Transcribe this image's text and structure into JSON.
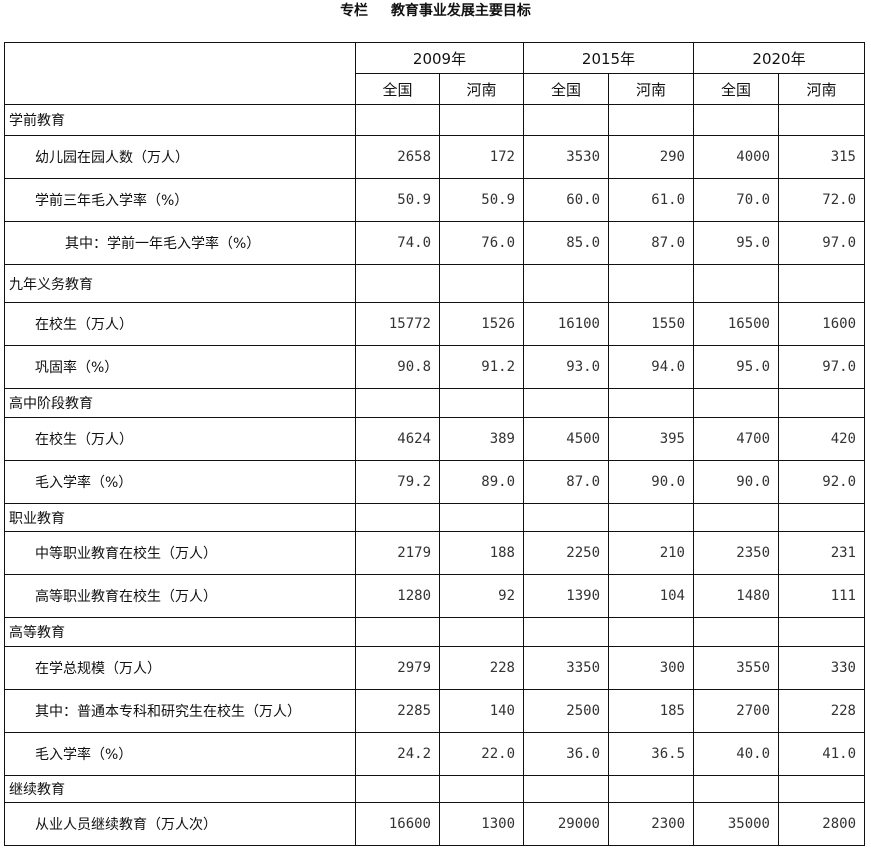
{
  "title": {
    "prefix": "专栏",
    "text": "教育事业发展主要目标"
  },
  "years": [
    "2009年",
    "2015年",
    "2020年"
  ],
  "subheaders": [
    "全国",
    "河南",
    "全国",
    "河南",
    "全国",
    "河南"
  ],
  "rows": [
    {
      "label": "学前教育",
      "level": 0,
      "values": [
        "",
        "",
        "",
        "",
        "",
        ""
      ]
    },
    {
      "label": "幼儿园在园人数（万人）",
      "level": 1,
      "values": [
        "2658",
        "172",
        "3530",
        "290",
        "4000",
        "315"
      ]
    },
    {
      "label": "学前三年毛入学率（%）",
      "level": 1,
      "values": [
        "50.9",
        "50.9",
        "60.0",
        "61.0",
        "70.0",
        "72.0"
      ]
    },
    {
      "label": "其中：学前一年毛入学率（%）",
      "level": 2,
      "values": [
        "74.0",
        "76.0",
        "85.0",
        "87.0",
        "95.0",
        "97.0"
      ]
    },
    {
      "label": "九年义务教育",
      "level": 0,
      "values": [
        "",
        "",
        "",
        "",
        "",
        ""
      ]
    },
    {
      "label": "在校生（万人）",
      "level": 1,
      "values": [
        "15772",
        "1526",
        "16100",
        "1550",
        "16500",
        "1600"
      ]
    },
    {
      "label": "巩固率（%）",
      "level": 1,
      "values": [
        "90.8",
        "91.2",
        "93.0",
        "94.0",
        "95.0",
        "97.0"
      ]
    },
    {
      "label": "高中阶段教育",
      "level": 0,
      "values": [
        "",
        "",
        "",
        "",
        "",
        ""
      ]
    },
    {
      "label": "在校生（万人）",
      "level": 1,
      "values": [
        "4624",
        "389",
        "4500",
        "395",
        "4700",
        "420"
      ]
    },
    {
      "label": "毛入学率（%）",
      "level": 1,
      "values": [
        "79.2",
        "89.0",
        "87.0",
        "90.0",
        "90.0",
        "92.0"
      ]
    },
    {
      "label": "职业教育",
      "level": 0,
      "values": [
        "",
        "",
        "",
        "",
        "",
        ""
      ]
    },
    {
      "label": "中等职业教育在校生（万人）",
      "level": 1,
      "values": [
        "2179",
        "188",
        "2250",
        "210",
        "2350",
        "231"
      ]
    },
    {
      "label": "高等职业教育在校生（万人）",
      "level": 1,
      "values": [
        "1280",
        "92",
        "1390",
        "104",
        "1480",
        "111"
      ]
    },
    {
      "label": "高等教育",
      "level": 0,
      "values": [
        "",
        "",
        "",
        "",
        "",
        ""
      ]
    },
    {
      "label": "在学总规模（万人）",
      "level": 1,
      "values": [
        "2979",
        "228",
        "3350",
        "300",
        "3550",
        "330"
      ]
    },
    {
      "label": "其中：普通本专科和研究生在校生（万人）",
      "level": 1,
      "values": [
        "2285",
        "140",
        "2500",
        "185",
        "2700",
        "228"
      ]
    },
    {
      "label": "毛入学率（%）",
      "level": 1,
      "values": [
        "24.2",
        "22.0",
        "36.0",
        "36.5",
        "40.0",
        "41.0"
      ]
    },
    {
      "label": "继续教育",
      "level": 0,
      "values": [
        "",
        "",
        "",
        "",
        "",
        ""
      ]
    },
    {
      "label": "从业人员继续教育（万人次）",
      "level": 1,
      "values": [
        "16600",
        "1300",
        "29000",
        "2300",
        "35000",
        "2800"
      ]
    }
  ]
}
